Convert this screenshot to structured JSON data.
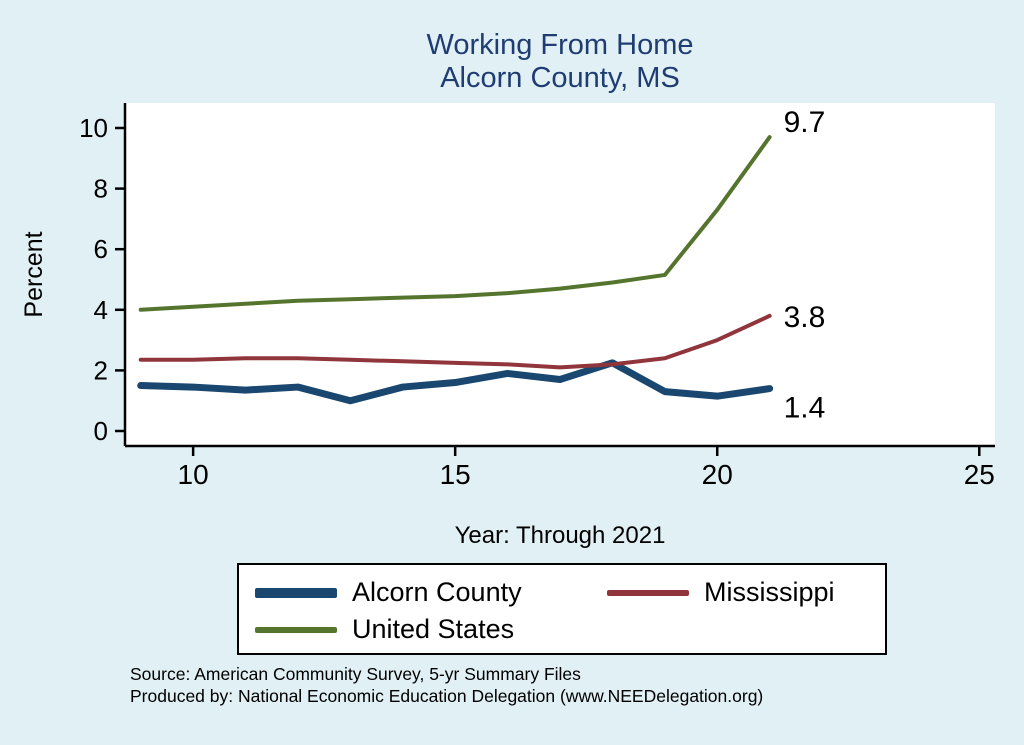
{
  "page": {
    "background": "#e1f0f5",
    "title_color": "#203d73"
  },
  "chart_data": {
    "type": "line",
    "title": "Working From Home",
    "subtitle": "Alcorn County, MS",
    "xlabel": "Year: Through 2021",
    "ylabel": "Percent",
    "xlim": [
      8.7,
      25.3
    ],
    "ylim": [
      0,
      10
    ],
    "x_ticks": [
      10,
      15,
      20,
      25
    ],
    "y_ticks": [
      0,
      2,
      4,
      6,
      8,
      10
    ],
    "grid": false,
    "legend_position": "bottom",
    "x": [
      9,
      10,
      11,
      12,
      13,
      14,
      15,
      16,
      17,
      18,
      19,
      20,
      21
    ],
    "series": [
      {
        "name": "Alcorn County",
        "color": "#1a476f",
        "line_width": 7,
        "end_label": "1.4",
        "values": [
          1.5,
          1.45,
          1.35,
          1.45,
          1.0,
          1.45,
          1.6,
          1.9,
          1.7,
          2.25,
          1.3,
          1.15,
          1.4
        ]
      },
      {
        "name": "Mississippi",
        "color": "#90353b",
        "line_width": 4,
        "end_label": "3.8",
        "values": [
          2.35,
          2.35,
          2.4,
          2.4,
          2.35,
          2.3,
          2.25,
          2.2,
          2.1,
          2.2,
          2.4,
          3.0,
          3.8
        ]
      },
      {
        "name": "United States",
        "color": "#55752f",
        "line_width": 4,
        "end_label": "9.7",
        "values": [
          4.0,
          4.1,
          4.2,
          4.3,
          4.35,
          4.4,
          4.45,
          4.55,
          4.7,
          4.9,
          5.15,
          7.3,
          9.7
        ]
      }
    ]
  },
  "notes": {
    "source": "Source: American Community Survey, 5-yr Summary Files",
    "produced_by": "Produced by: National Economic Education Delegation (www.NEEDelegation.org)"
  }
}
